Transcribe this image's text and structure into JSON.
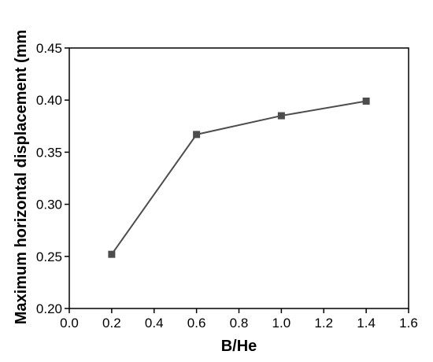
{
  "chart_data": {
    "type": "line",
    "title": "",
    "xlabel": "B/He",
    "ylabel": "Maximum horizontal displacement (mm",
    "xlim": [
      0.0,
      1.6
    ],
    "ylim": [
      0.2,
      0.45
    ],
    "xticks": [
      "0.0",
      "0.2",
      "0.4",
      "0.6",
      "0.8",
      "1.0",
      "1.2",
      "1.4",
      "1.6"
    ],
    "yticks": [
      "0.20",
      "0.25",
      "0.30",
      "0.35",
      "0.40",
      "0.45"
    ],
    "grid": false,
    "legend": "none",
    "series": [
      {
        "x": [
          0.2,
          0.6,
          1.0,
          1.4
        ],
        "y": [
          0.252,
          0.367,
          0.385,
          0.399
        ],
        "color": "#4d4d4d",
        "marker": "square"
      }
    ]
  }
}
